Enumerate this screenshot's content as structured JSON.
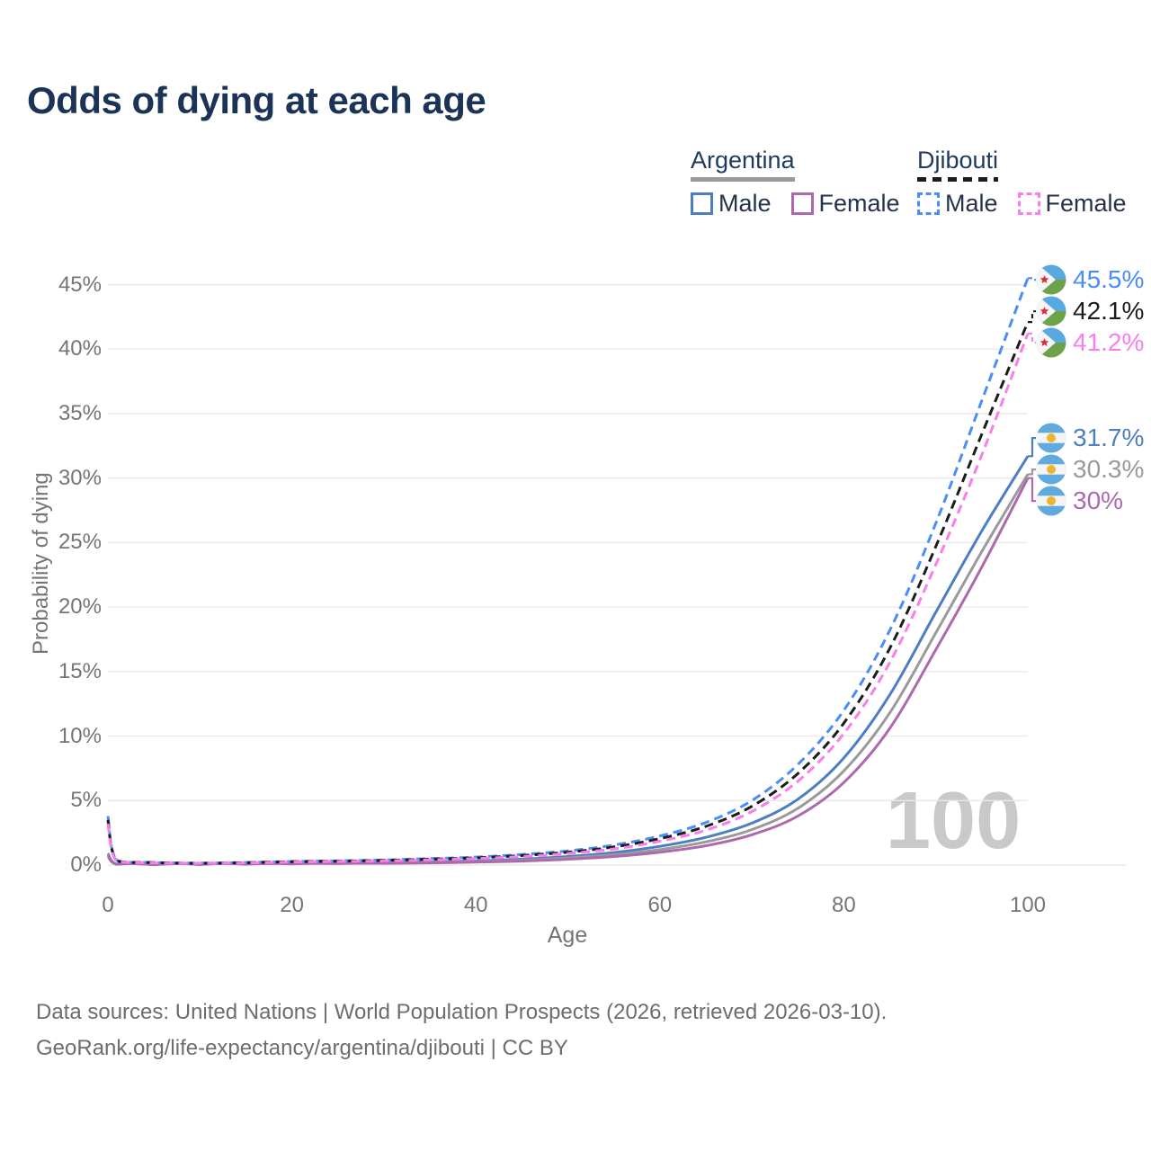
{
  "title": "Odds of dying at each age",
  "watermark_age": "100",
  "legend": {
    "groups": [
      {
        "country": "Argentina",
        "line_style": "solid",
        "underline_color": "#9a9a9a",
        "items": [
          {
            "label": "Male",
            "color": "#4d7fc0"
          },
          {
            "label": "Female",
            "color": "#ae68ae"
          }
        ]
      },
      {
        "country": "Djibouti",
        "line_style": "dashed",
        "underline_color": "#1c1c1c",
        "items": [
          {
            "label": "Male",
            "color": "#4b8df8"
          },
          {
            "label": "Female",
            "color": "#fb7ceb"
          }
        ]
      }
    ]
  },
  "axes": {
    "y_title": "Probability of dying",
    "x_title": "Age"
  },
  "footer": {
    "line1": "Data sources: United Nations | World Population Prospects (2026, retrieved 2026-03-10).",
    "line2": "GeoRank.org/life-expectancy/argentina/djibouti | CC BY"
  },
  "chart_data": {
    "type": "line",
    "title": "Odds of dying at each age",
    "xlabel": "Age",
    "ylabel": "Probability of dying",
    "xlim": [
      0,
      100
    ],
    "ylim_percent": [
      0,
      47
    ],
    "xticks": [
      0,
      20,
      40,
      60,
      80,
      100
    ],
    "yticks_percent": [
      0,
      5,
      10,
      15,
      20,
      25,
      30,
      35,
      40,
      45
    ],
    "grid": "horizontal",
    "legend_position": "top-right",
    "ages": [
      0,
      1,
      5,
      10,
      15,
      20,
      25,
      30,
      35,
      40,
      45,
      50,
      55,
      60,
      65,
      70,
      75,
      80,
      85,
      90,
      95,
      100
    ],
    "series": [
      {
        "name": "Argentina Male",
        "country": "Argentina",
        "sex": "Male",
        "style": "solid",
        "color": "#4d7fc0",
        "flag": "argentina",
        "end_label": "31.7%",
        "values_percent": [
          0.9,
          0.07,
          0.04,
          0.05,
          0.1,
          0.15,
          0.18,
          0.21,
          0.26,
          0.33,
          0.46,
          0.66,
          0.97,
          1.45,
          2.15,
          3.25,
          5.1,
          8.3,
          13.2,
          19.6,
          25.9,
          31.7
        ]
      },
      {
        "name": "Argentina All",
        "country": "Argentina",
        "sex": "All",
        "style": "solid",
        "color": "#9a9a9a",
        "flag": "argentina",
        "end_label": "30.3%",
        "values_percent": [
          0.8,
          0.06,
          0.035,
          0.045,
          0.08,
          0.12,
          0.15,
          0.17,
          0.21,
          0.27,
          0.38,
          0.55,
          0.8,
          1.2,
          1.8,
          2.75,
          4.4,
          7.3,
          11.8,
          18.0,
          24.3,
          30.3
        ]
      },
      {
        "name": "Argentina Female",
        "country": "Argentina",
        "sex": "Female",
        "style": "solid",
        "color": "#ae68ae",
        "flag": "argentina",
        "end_label": "30%",
        "values_percent": [
          0.7,
          0.055,
          0.03,
          0.04,
          0.06,
          0.09,
          0.11,
          0.13,
          0.17,
          0.22,
          0.31,
          0.45,
          0.66,
          1.0,
          1.5,
          2.35,
          3.8,
          6.4,
          10.6,
          16.7,
          23.1,
          30.0
        ]
      },
      {
        "name": "Djibouti Male",
        "country": "Djibouti",
        "sex": "Male",
        "style": "dashed",
        "color": "#4b8df8",
        "flag": "djibouti",
        "end_label": "45.5%",
        "values_percent": [
          3.8,
          0.35,
          0.2,
          0.15,
          0.2,
          0.28,
          0.33,
          0.4,
          0.5,
          0.62,
          0.82,
          1.1,
          1.55,
          2.25,
          3.3,
          5.0,
          7.8,
          12.0,
          18.2,
          26.5,
          36.0,
          45.5
        ]
      },
      {
        "name": "Djibouti All",
        "country": "Djibouti",
        "sex": "All",
        "style": "dashed",
        "color": "#1c1c1c",
        "flag": "djibouti",
        "end_label": "42.1%",
        "values_percent": [
          3.5,
          0.33,
          0.19,
          0.14,
          0.18,
          0.26,
          0.3,
          0.36,
          0.45,
          0.56,
          0.74,
          1.0,
          1.4,
          2.05,
          3.0,
          4.55,
          7.1,
          11.0,
          16.8,
          24.7,
          33.4,
          42.1
        ]
      },
      {
        "name": "Djibouti Female",
        "country": "Djibouti",
        "sex": "Female",
        "style": "dashed",
        "color": "#fb7ceb",
        "flag": "djibouti",
        "end_label": "41.2%",
        "values_percent": [
          3.2,
          0.3,
          0.17,
          0.13,
          0.16,
          0.23,
          0.27,
          0.32,
          0.4,
          0.5,
          0.66,
          0.9,
          1.25,
          1.85,
          2.7,
          4.15,
          6.5,
          10.2,
          15.7,
          23.3,
          31.8,
          41.2
        ]
      }
    ]
  }
}
